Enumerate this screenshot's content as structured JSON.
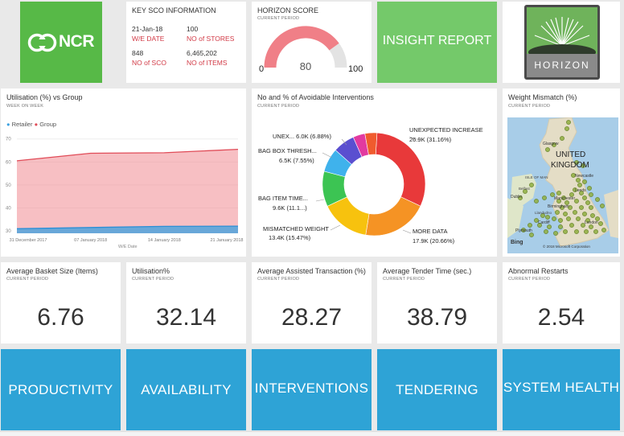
{
  "brand": {
    "logo_text": "NCR"
  },
  "key_info": {
    "title": "KEY SCO INFORMATION",
    "date_value": "21-Jan-18",
    "date_label": "W/E DATE",
    "stores_value": "100",
    "stores_label": "NO of STORES",
    "sco_value": "848",
    "sco_label": "NO of SCO",
    "items_value": "6,465,202",
    "items_label": "NO of ITEMS"
  },
  "horizon_score": {
    "title": "HORIZON SCORE",
    "subtitle": "CURRENT PERIOD",
    "value": "80",
    "min": "0",
    "max": "100",
    "fraction": 0.8
  },
  "insight": {
    "label": "INSIGHT REPORT"
  },
  "horizon_logo": {
    "text": "HORIZON"
  },
  "utilisation_chart": {
    "title": "Utilisation (%) vs Group",
    "subtitle": "WEEK ON WEEK",
    "legend_retailer": "Retailer",
    "legend_group": "Group",
    "xlabel": "W/E Date",
    "chart_data": {
      "type": "area",
      "x": [
        "31 December 2017",
        "07 January 2018",
        "14 January 2018",
        "21 January 2018"
      ],
      "series": [
        {
          "name": "Retailer",
          "values": [
            31,
            31.5,
            32,
            32.1
          ],
          "color": "#3aa0e0"
        },
        {
          "name": "Group",
          "values": [
            60.5,
            63.8,
            64,
            65.5
          ],
          "color": "#f08a92"
        }
      ],
      "yticks": [
        "30",
        "40",
        "50",
        "60",
        "70"
      ],
      "ylim": [
        29,
        72
      ]
    }
  },
  "interventions_chart": {
    "title": "No and % of Avoidable Interventions",
    "subtitle": "CURRENT PERIOD",
    "chart_data": {
      "type": "pie",
      "slices": [
        {
          "label": "UNEXPECTED INCREASE",
          "value_label": "26.9K (31.16%)",
          "value": 31.16,
          "color": "#e8393a"
        },
        {
          "label": "MORE DATA",
          "value_label": "17.9K (20.66%)",
          "value": 20.66,
          "color": "#f59324"
        },
        {
          "label": "MISMATCHED WEIGHT",
          "value_label": "13.4K (15.47%)",
          "value": 15.47,
          "color": "#f7c20e"
        },
        {
          "label": "BAG ITEM TIME...",
          "value_label": "9.6K (11.1...)",
          "value": 11.1,
          "color": "#3cc453"
        },
        {
          "label": "BAG BOX THRESH...",
          "value_label": "6.5K (7.55%)",
          "value": 7.55,
          "color": "#3fb2ec"
        },
        {
          "label": "UNEX... 6.0K (6.88%)",
          "value_label": "",
          "value": 6.88,
          "color": "#5a4fd0"
        },
        {
          "label": "",
          "value_label": "",
          "value": 3.8,
          "color": "#e23aa0"
        },
        {
          "label": "",
          "value_label": "",
          "value": 3.78,
          "color": "#f05b2e"
        }
      ]
    }
  },
  "weight_map": {
    "title": "Weight Mismatch (%)",
    "subtitle": "CURRENT PERIOD",
    "country": "UNITED",
    "country2": "KINGDOM",
    "cities": [
      "Glasgow",
      "Newcastle",
      "Leeds",
      "Dublin",
      "Manchester",
      "Birmingham",
      "London",
      "Cardiff",
      "Plymouth"
    ],
    "region_labels": [
      "ISLE OF MAN",
      "Belfast",
      "Llandudno"
    ],
    "attribution": "© 2018 Microsoft Corporation",
    "bing": "Bing"
  },
  "kpis": [
    {
      "title": "Average Basket Size (Items)",
      "subtitle": "CURRENT PERIOD",
      "value": "6.76"
    },
    {
      "title": "Utilisation%",
      "subtitle": "CURRENT PERIOD",
      "value": "32.14"
    },
    {
      "title": "Average Assisted Transaction (%)",
      "subtitle": "CURRENT PERIOD",
      "value": "28.27"
    },
    {
      "title": "Average Tender Time (sec.)",
      "subtitle": "CURRENT PERIOD",
      "value": "38.79"
    },
    {
      "title": "Abnormal Restarts",
      "subtitle": "CURRENT PERIOD",
      "value": "2.54"
    }
  ],
  "nav": [
    {
      "label": "PRODUCTIVITY"
    },
    {
      "label": "AVAILABILITY"
    },
    {
      "label": "INTERVENTIONS"
    },
    {
      "label": "TENDERING"
    },
    {
      "label": "SYSTEM HEALTH"
    }
  ],
  "colors": {
    "ncr_green": "#57b947",
    "insight_green": "#74c96a",
    "nav_blue": "#2ea3d6"
  }
}
